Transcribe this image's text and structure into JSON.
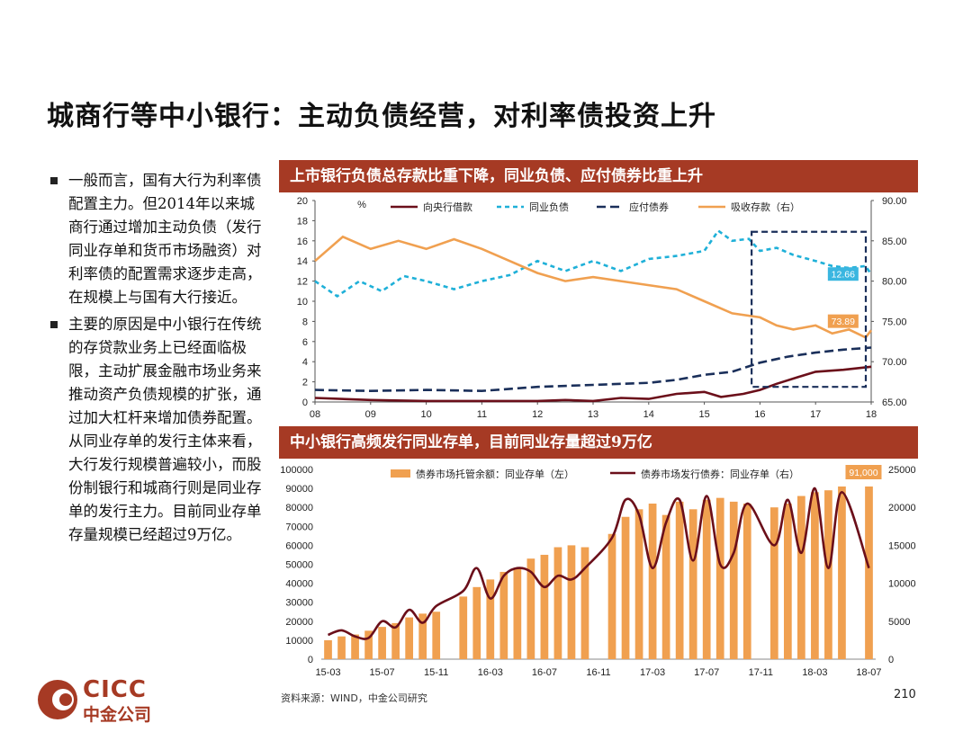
{
  "title": "城商行等中小银行：主动负债经营，对利率债投资上升",
  "bullets": [
    "一般而言，国有大行为利率债配置主力。但2014年以来城商行通过增加主动负债（发行同业存单和货币市场融资）对利率债的配置需求逐步走高，在规模上与国有大行接近。",
    "主要的原因是中小银行在传统的存贷款业务上已经面临极限，主动扩展金融市场业务来推动资产负债规模的扩张，通过加大杠杆来增加债券配置。从同业存单的发行主体来看，大行发行规模普遍较小，而股份制银行和城商行则是同业存单的发行主力。目前同业存单存量规模已经超过9万亿。"
  ],
  "footer": {
    "source": "资料来源：WIND，中金公司研究",
    "page": "210"
  },
  "logo": {
    "en": "CICC",
    "cn": "中金公司"
  },
  "colors": {
    "banner": "#a63a24",
    "dark_red": "#6b0f1a",
    "cyan": "#1fb0d8",
    "navy": "#1a2f5a",
    "orange": "#f0a050"
  },
  "chart_data": [
    {
      "type": "line",
      "title": "上市银行负债总存款比重下降，同业负债、应付债券比重上升",
      "unit_label": "%",
      "x_ticks": [
        "08",
        "09",
        "10",
        "11",
        "12",
        "13",
        "14",
        "15",
        "16",
        "17",
        "18"
      ],
      "x_range": [
        2008,
        2018
      ],
      "y_left": {
        "range": [
          0,
          20
        ],
        "ticks": [
          "0",
          "2",
          "4",
          "6",
          "8",
          "10",
          "12",
          "14",
          "16",
          "18",
          "20"
        ]
      },
      "y_right": {
        "range": [
          65,
          90
        ],
        "ticks": [
          "65.00",
          "70.00",
          "75.00",
          "80.00",
          "85.00",
          "90.00"
        ]
      },
      "series": [
        {
          "name": "向央行借款",
          "axis": "left",
          "color": "#6b0f1a",
          "dash": "solid",
          "points": [
            [
              2008,
              0.4
            ],
            [
              2009,
              0.2
            ],
            [
              2010,
              0.1
            ],
            [
              2011,
              0.1
            ],
            [
              2012,
              0.1
            ],
            [
              2012.5,
              0.2
            ],
            [
              2013,
              0.1
            ],
            [
              2013.5,
              0.4
            ],
            [
              2014,
              0.3
            ],
            [
              2014.5,
              0.8
            ],
            [
              2015,
              1.0
            ],
            [
              2015.3,
              0.5
            ],
            [
              2015.7,
              0.8
            ],
            [
              2016,
              1.2
            ],
            [
              2016.3,
              1.8
            ],
            [
              2016.7,
              2.5
            ],
            [
              2017,
              3.0
            ],
            [
              2017.5,
              3.2
            ],
            [
              2018,
              3.5
            ]
          ]
        },
        {
          "name": "同业负债",
          "axis": "left",
          "color": "#1fb0d8",
          "dash": "dashed",
          "points": [
            [
              2008,
              12.0
            ],
            [
              2008.4,
              10.5
            ],
            [
              2008.8,
              12.0
            ],
            [
              2009.2,
              11.0
            ],
            [
              2009.6,
              12.5
            ],
            [
              2010,
              12.0
            ],
            [
              2010.5,
              11.2
            ],
            [
              2011,
              12.0
            ],
            [
              2011.5,
              12.6
            ],
            [
              2012,
              14.0
            ],
            [
              2012.5,
              13.0
            ],
            [
              2013,
              14.0
            ],
            [
              2013.5,
              13.0
            ],
            [
              2014,
              14.2
            ],
            [
              2014.5,
              14.5
            ],
            [
              2015,
              15.0
            ],
            [
              2015.25,
              17.0
            ],
            [
              2015.5,
              16.0
            ],
            [
              2015.8,
              16.2
            ],
            [
              2016,
              15.0
            ],
            [
              2016.3,
              15.3
            ],
            [
              2016.6,
              14.6
            ],
            [
              2017,
              14.0
            ],
            [
              2017.3,
              13.5
            ],
            [
              2017.6,
              13.3
            ],
            [
              2017.9,
              13.5
            ],
            [
              2018,
              12.66
            ]
          ]
        },
        {
          "name": "应付债券",
          "axis": "left",
          "color": "#1a2f5a",
          "dash": "longdash",
          "points": [
            [
              2008,
              1.2
            ],
            [
              2009,
              1.1
            ],
            [
              2010,
              1.2
            ],
            [
              2011,
              1.1
            ],
            [
              2012,
              1.5
            ],
            [
              2013,
              1.7
            ],
            [
              2014,
              1.9
            ],
            [
              2014.5,
              2.2
            ],
            [
              2015,
              2.7
            ],
            [
              2015.5,
              3.0
            ],
            [
              2016,
              3.9
            ],
            [
              2016.5,
              4.5
            ],
            [
              2017,
              4.9
            ],
            [
              2017.5,
              5.2
            ],
            [
              2018,
              5.4
            ]
          ]
        },
        {
          "name": "吸收存款（右）",
          "axis": "right",
          "color": "#f0a050",
          "dash": "solid",
          "points": [
            [
              2008,
              82.5
            ],
            [
              2008.5,
              85.5
            ],
            [
              2009,
              84.0
            ],
            [
              2009.5,
              85.0
            ],
            [
              2010,
              84.0
            ],
            [
              2010.5,
              85.2
            ],
            [
              2011,
              84.0
            ],
            [
              2011.5,
              82.5
            ],
            [
              2012,
              81.0
            ],
            [
              2012.5,
              80.0
            ],
            [
              2013,
              80.5
            ],
            [
              2013.5,
              80.0
            ],
            [
              2014,
              79.5
            ],
            [
              2014.5,
              79.0
            ],
            [
              2015,
              77.5
            ],
            [
              2015.5,
              76.0
            ],
            [
              2016,
              75.5
            ],
            [
              2016.3,
              74.5
            ],
            [
              2016.6,
              74.0
            ],
            [
              2017,
              74.5
            ],
            [
              2017.3,
              73.5
            ],
            [
              2017.6,
              74.0
            ],
            [
              2017.9,
              73.0
            ],
            [
              2018,
              73.89
            ]
          ]
        }
      ],
      "callouts": [
        {
          "text": "12.66",
          "series": "同业负债",
          "color": "#3ab6e0"
        },
        {
          "text": "73.89",
          "series": "吸收存款（右）",
          "color": "#f0a050"
        }
      ]
    },
    {
      "type": "bar",
      "title": "中小银行高频发行同业存单，目前同业存量超过9万亿",
      "categories": [
        "15-03",
        "15-04",
        "15-05",
        "15-06",
        "15-07",
        "15-08",
        "15-09",
        "15-10",
        "15-11",
        "15-12",
        "16-01",
        "16-02",
        "16-03",
        "16-04",
        "16-05",
        "16-06",
        "16-07",
        "16-08",
        "16-09",
        "16-10",
        "16-11",
        "16-12",
        "17-01",
        "17-02",
        "17-03",
        "17-04",
        "17-05",
        "17-06",
        "17-07",
        "17-08",
        "17-09",
        "17-10",
        "17-11",
        "17-12",
        "18-01",
        "18-02",
        "18-03",
        "18-04",
        "18-05",
        "18-06",
        "18-07"
      ],
      "x_ticks": [
        "15-03",
        "15-07",
        "15-11",
        "16-03",
        "16-07",
        "16-11",
        "17-03",
        "17-07",
        "17-11",
        "18-03",
        "18-07"
      ],
      "y_left": {
        "range": [
          0,
          100000
        ],
        "ticks": [
          "0",
          "10000",
          "20000",
          "30000",
          "40000",
          "50000",
          "60000",
          "70000",
          "80000",
          "90000",
          "100000"
        ]
      },
      "y_right": {
        "range": [
          0,
          25000
        ],
        "ticks": [
          "0",
          "5000",
          "10000",
          "15000",
          "20000",
          "25000"
        ]
      },
      "series": [
        {
          "name": "债券市场托管余额：同业存单（左）",
          "axis": "left",
          "color": "#f0a050",
          "values": [
            10000,
            12000,
            13000,
            15000,
            17000,
            19000,
            22000,
            24000,
            25000,
            null,
            33000,
            38000,
            42000,
            46000,
            48000,
            53000,
            55000,
            59000,
            60000,
            59000,
            null,
            66000,
            75000,
            79000,
            82000,
            76000,
            83000,
            79000,
            84000,
            85000,
            83000,
            82000,
            null,
            80000,
            82000,
            86000,
            88000,
            89000,
            91000,
            null,
            91000
          ]
        },
        {
          "name": "债券市场发行债券：同业存单（右）",
          "axis": "right",
          "color": "#6b0f1a",
          "values": [
            3200,
            3800,
            3000,
            2800,
            5000,
            4200,
            6500,
            4800,
            7000,
            null,
            9000,
            12000,
            8000,
            11000,
            12000,
            11500,
            9500,
            11000,
            10500,
            12000,
            null,
            16000,
            21000,
            19000,
            12000,
            18000,
            21000,
            13000,
            21500,
            12500,
            14000,
            20500,
            null,
            15000,
            21000,
            14000,
            22500,
            12000,
            22000,
            null,
            12000
          ]
        }
      ],
      "callouts": [
        {
          "text": "91,000",
          "color": "#f0a050"
        }
      ]
    }
  ]
}
